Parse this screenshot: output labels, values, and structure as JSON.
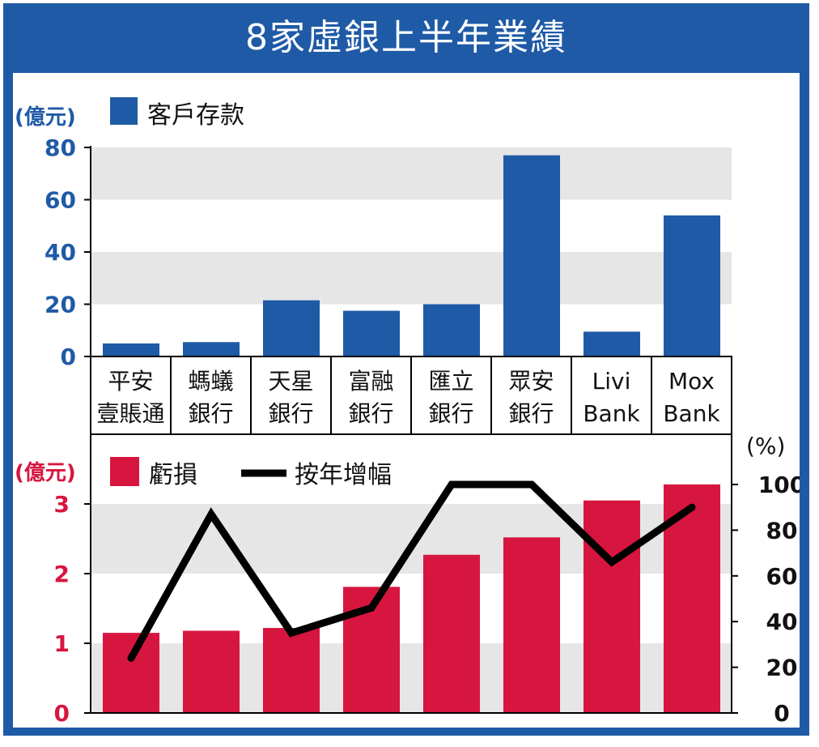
{
  "title": "8家虛銀上半年業績",
  "colors": {
    "frame": "#1f5aa6",
    "deposit": "#1f5aa6",
    "loss": "#d7163f",
    "line": "#000000",
    "band": "#e6e6e6"
  },
  "chart_data": [
    {
      "type": "bar",
      "unit_label": "(億元)",
      "legend": "客戶存款",
      "legend_position": "top-left",
      "ylim": [
        0,
        80
      ],
      "yticks": [
        0,
        20,
        40,
        60,
        80
      ],
      "categories": [
        [
          "平安",
          "壹賬通"
        ],
        [
          "螞蟻",
          "銀行"
        ],
        [
          "天星",
          "銀行"
        ],
        [
          "富融",
          "銀行"
        ],
        [
          "匯立",
          "銀行"
        ],
        [
          "眾安",
          "銀行"
        ],
        [
          "Livi",
          "Bank"
        ],
        [
          "Mox",
          "Bank"
        ]
      ],
      "series": [
        {
          "name": "客戶存款",
          "values": [
            5,
            5.5,
            21.5,
            17.5,
            20,
            77,
            9.5,
            54
          ]
        }
      ]
    },
    {
      "type": "bar+line",
      "left_unit_label": "(億元)",
      "right_unit_label": "(%)",
      "legend_position": "top-left",
      "ylim_left": [
        0,
        3.35
      ],
      "yticks_left": [
        0,
        1,
        2,
        3
      ],
      "ylim_right": [
        0,
        100
      ],
      "yticks_right": [
        0,
        20,
        40,
        60,
        80,
        100
      ],
      "series": [
        {
          "name": "虧損",
          "axis": "left",
          "kind": "bar",
          "values": [
            1.15,
            1.18,
            1.22,
            1.81,
            2.27,
            2.52,
            3.05,
            3.28
          ]
        },
        {
          "name": "按年增幅",
          "axis": "right",
          "kind": "line",
          "values": [
            24,
            87,
            35,
            46,
            100,
            100,
            66,
            90
          ]
        }
      ]
    }
  ]
}
